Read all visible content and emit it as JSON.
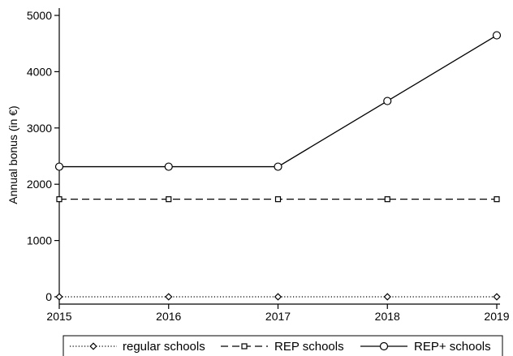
{
  "chart_data": {
    "type": "line",
    "title": "",
    "xlabel": "",
    "ylabel": "Annual bonus (in €)",
    "x": [
      2015,
      2016,
      2017,
      2018,
      2019
    ],
    "xlim": [
      2015,
      2019
    ],
    "ylim": [
      0,
      5000
    ],
    "yticks": [
      0,
      1000,
      2000,
      3000,
      4000,
      5000
    ],
    "grid": false,
    "legend_position": "bottom",
    "series": [
      {
        "name": "regular schools",
        "values": [
          0,
          0,
          0,
          0,
          0
        ],
        "marker": "diamond",
        "line_style": "dotted",
        "color": "#000000"
      },
      {
        "name": "REP schools",
        "values": [
          1734,
          1734,
          1734,
          1734,
          1734
        ],
        "marker": "square",
        "line_style": "dashed",
        "color": "#000000"
      },
      {
        "name": "REP+ schools",
        "values": [
          2312,
          2312,
          2312,
          3479,
          4646
        ],
        "marker": "circle",
        "line_style": "solid",
        "color": "#000000"
      }
    ]
  }
}
